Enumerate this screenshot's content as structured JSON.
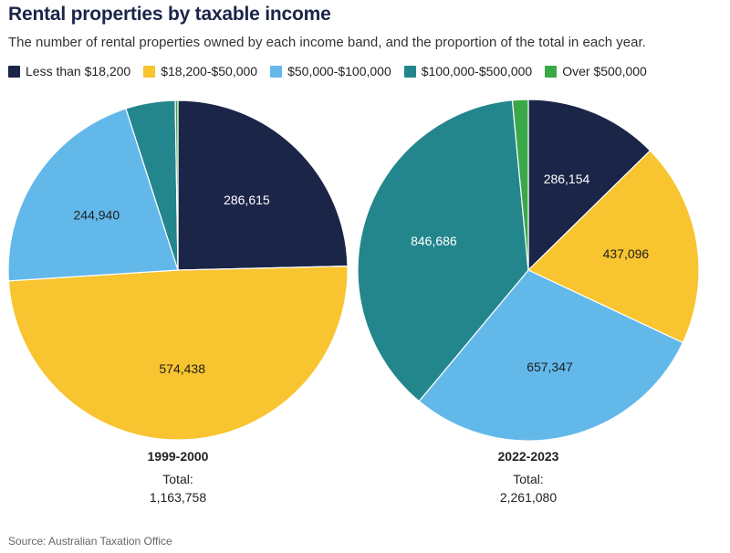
{
  "title": "Rental properties by taxable income",
  "subtitle": "The number of rental properties owned by each income band, and the proportion of the total in each year.",
  "source": "Source: Australian Taxation Office",
  "legend": [
    {
      "label": "Less than $18,200",
      "color": "#1b2548"
    },
    {
      "label": "$18,200-$50,000",
      "color": "#f8c42f"
    },
    {
      "label": "$50,000-$100,000",
      "color": "#63b8ea"
    },
    {
      "label": "$100,000-$500,000",
      "color": "#23868c"
    },
    {
      "label": "Over $500,000",
      "color": "#3aa848"
    }
  ],
  "captions": [
    {
      "year": "1999-2000",
      "total_label": "Total:",
      "total_value": "1,163,758"
    },
    {
      "year": "2022-2023",
      "total_label": "Total:",
      "total_value": "2,261,080"
    }
  ],
  "chart_data": [
    {
      "type": "pie",
      "title": "1999-2000",
      "categories": [
        "Less than $18,200",
        "$18,200-$50,000",
        "$50,000-$100,000",
        "$100,000-$500,000",
        "Over $500,000"
      ],
      "values": [
        286615,
        574438,
        244940,
        54800,
        2965
      ],
      "data_labels": [
        "286,615",
        "574,438",
        "244,940",
        "",
        ""
      ],
      "colors": [
        "#1b2548",
        "#f8c42f",
        "#63b8ea",
        "#23868c",
        "#3aa848"
      ],
      "start": "12 o'clock",
      "direction": "clockwise"
    },
    {
      "type": "pie",
      "title": "2022-2023",
      "categories": [
        "Less than $18,200",
        "$18,200-$50,000",
        "$50,000-$100,000",
        "$100,000-$500,000",
        "Over $500,000"
      ],
      "values": [
        286154,
        437096,
        657347,
        846686,
        33797
      ],
      "data_labels": [
        "286,154",
        "437,096",
        "657,347",
        "846,686",
        ""
      ],
      "colors": [
        "#1b2548",
        "#f8c42f",
        "#63b8ea",
        "#23868c",
        "#3aa848"
      ],
      "start": "12 o'clock",
      "direction": "clockwise"
    }
  ]
}
